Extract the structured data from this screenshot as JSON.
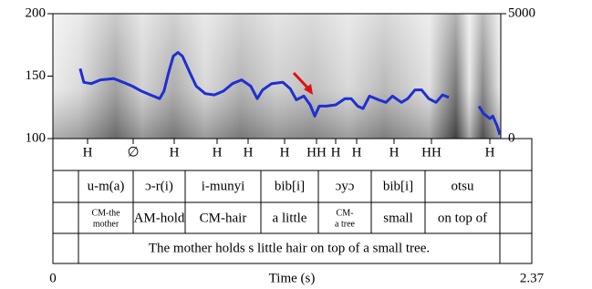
{
  "chart_data": {
    "type": "line",
    "xlabel": "Time (s)",
    "xlim": [
      0,
      2.37
    ],
    "xticks": [
      0,
      2.37
    ],
    "ylim": [
      100,
      200
    ],
    "yticks": [
      100,
      150,
      200
    ],
    "y2lim": [
      0,
      5000
    ],
    "y2ticks": [
      0,
      5000
    ],
    "color": "#1f2fd0",
    "x": [
      0.135,
      0.153,
      0.19,
      0.235,
      0.3,
      0.348,
      0.393,
      0.438,
      0.483,
      0.528,
      0.55,
      0.573,
      0.596,
      0.619,
      0.641,
      0.677,
      0.709,
      0.754,
      0.799,
      0.844,
      0.889,
      0.934,
      0.979,
      1.011,
      1.038,
      1.083,
      1.138,
      1.174,
      1.205,
      1.242,
      1.273,
      1.296,
      1.318,
      1.354,
      1.4,
      1.445,
      1.476,
      1.508,
      1.535,
      1.567,
      1.612,
      1.648,
      1.68,
      1.725,
      1.756,
      1.792,
      1.824,
      1.86,
      1.896,
      1.928,
      1.959,
      2.0,
      2.108,
      2.131,
      2.163,
      2.177,
      2.199,
      2.212
    ],
    "values": [
      156,
      145,
      144,
      147,
      148,
      145,
      142,
      138,
      135,
      132,
      138,
      153,
      166,
      169,
      166,
      153,
      142,
      136,
      135,
      138,
      144,
      147,
      142,
      132,
      139,
      144,
      145,
      140,
      131,
      134,
      127,
      118,
      126,
      126,
      127,
      132,
      132,
      126,
      124,
      134,
      131,
      129,
      134,
      129,
      132,
      139,
      139,
      132,
      129,
      135,
      133,
      null,
      126,
      120,
      116,
      118,
      110,
      103
    ],
    "tones": [
      "H",
      "∅",
      "H",
      "H",
      "H",
      "H",
      "HH",
      "H",
      "H",
      "H",
      "HH",
      "H"
    ],
    "words": [
      "u-m(a)",
      "ɔ-r(i)",
      "i-munyi",
      "bib[i]",
      "ɔyɔ",
      "bib[i]",
      "otsu"
    ],
    "glosses": [
      [
        "CM-the",
        "mother"
      ],
      "AM-hold",
      "CM-hair",
      "a little",
      [
        "CM-",
        "a tree"
      ],
      "small",
      "on top of"
    ],
    "sentence": "The mother holds s little hair on top of a small tree."
  }
}
